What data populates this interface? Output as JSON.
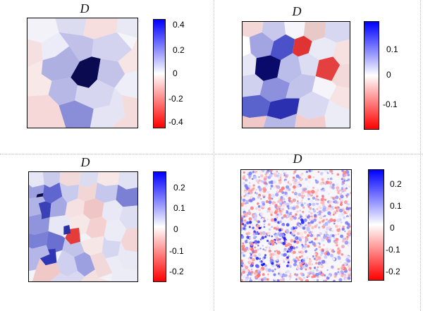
{
  "panels": [
    {
      "title": "D",
      "colorbar_ticks": [
        "0.4",
        "0.2",
        "0",
        "-0.2",
        "-0.4"
      ]
    },
    {
      "title": "D",
      "colorbar_ticks": [
        "0.1",
        "0",
        "-0.1"
      ]
    },
    {
      "title": "D",
      "colorbar_ticks": [
        "0.2",
        "0.1",
        "0",
        "-0.1",
        "-0.2"
      ]
    },
    {
      "title": "D",
      "colorbar_ticks": [
        "0.2",
        "0.1",
        "0",
        "-0.1",
        "-0.2"
      ]
    }
  ],
  "colors": {
    "positive": "#0000ff",
    "zero": "#ffffff",
    "negative": "#ff0000",
    "dark_grain": "#0a0a50"
  }
}
